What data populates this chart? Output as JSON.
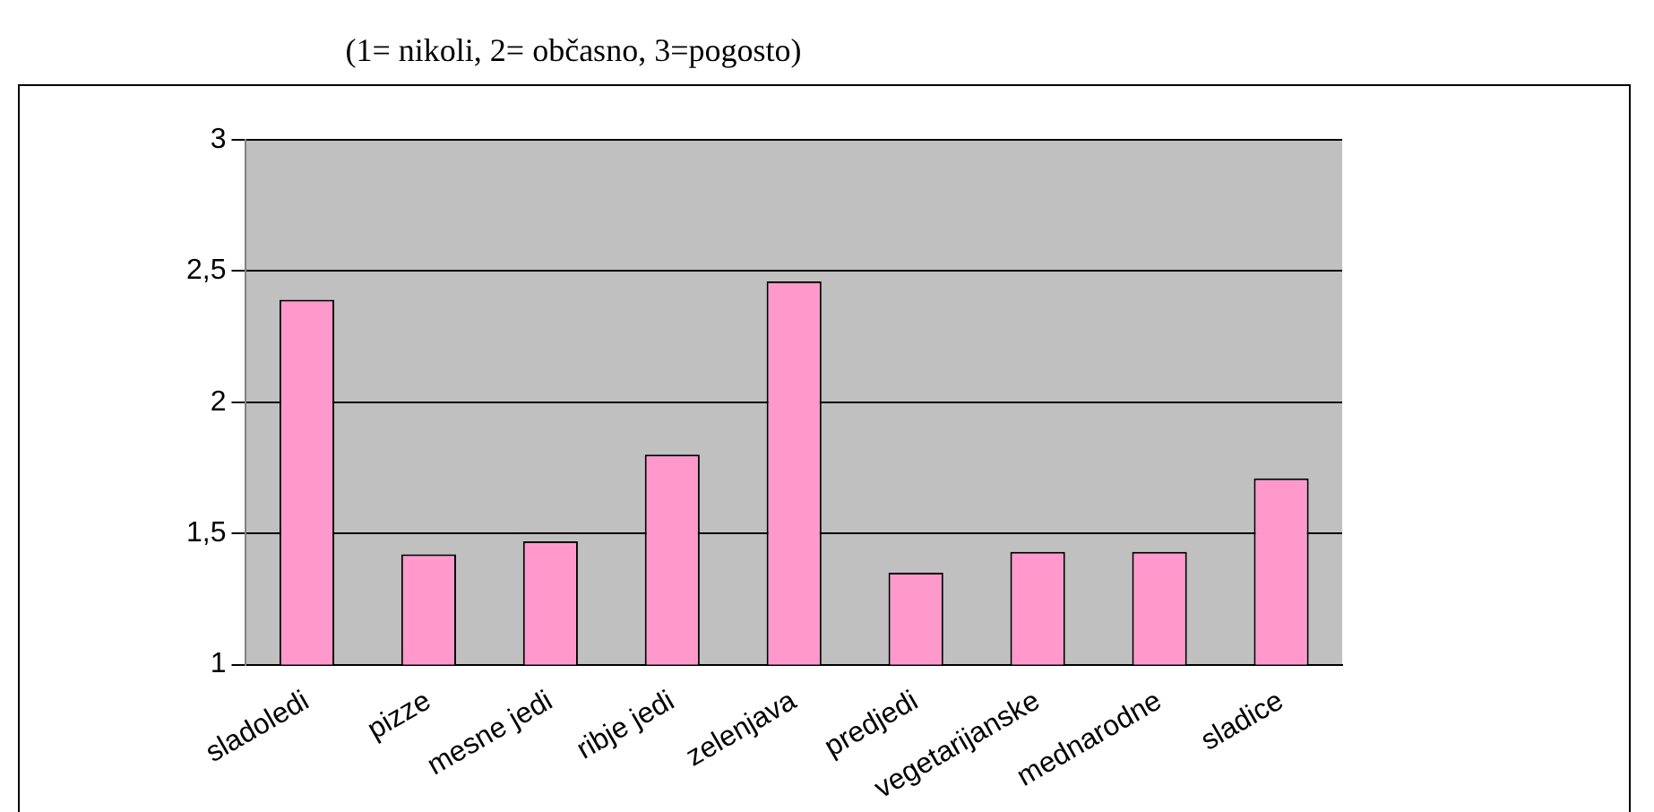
{
  "chart_data": {
    "type": "bar",
    "title": "(1= nikoli, 2= občasno, 3=pogosto)",
    "categories": [
      "sladoledi",
      "pizze",
      "mesne jedi",
      "ribje jedi",
      "zelenjava",
      "predjedi",
      "vegetarijanske",
      "mednarodne",
      "sladice"
    ],
    "values": [
      2.39,
      1.42,
      1.47,
      1.8,
      2.46,
      1.35,
      1.43,
      1.43,
      1.71
    ],
    "color": "#ff99cc",
    "ylim": [
      1,
      3
    ],
    "yticks": [
      1,
      {
        "value": 1.5,
        "label": "1,5"
      },
      2,
      {
        "value": 2.5,
        "label": "2,5"
      },
      3
    ],
    "grid": "y",
    "legend": false
  }
}
